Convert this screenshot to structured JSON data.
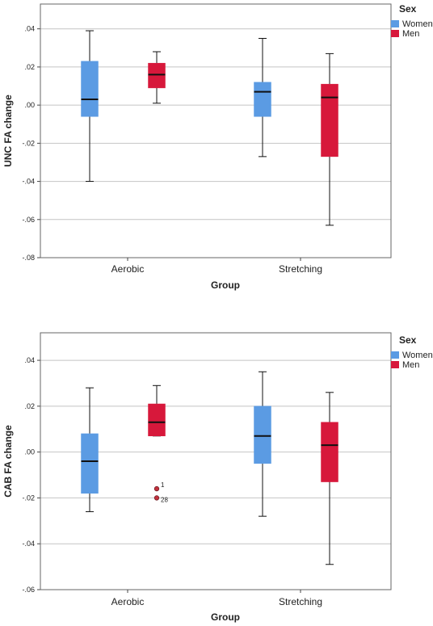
{
  "colors": {
    "Women": "#5b9be3",
    "Men": "#d7183b",
    "outlier": "#c2323e"
  },
  "chart_data": [
    {
      "type": "boxplot",
      "categories": [
        "Aerobic",
        "Stretching"
      ],
      "xlabel": "Group",
      "ylabel": "UNC FA change",
      "ylim": [
        -0.08,
        0.053
      ],
      "yticks": [
        0.04,
        0.02,
        0.0,
        -0.02,
        -0.04,
        -0.06,
        -0.08
      ],
      "ytick_labels": [
        ".04",
        ".02",
        ".00",
        "-.02",
        "-.04",
        "-.06",
        "-.08"
      ],
      "grid": true,
      "legend": {
        "title": "Sex",
        "position": "top-right"
      },
      "series": [
        {
          "name": "Women",
          "boxes": [
            {
              "min": -0.04,
              "q1": -0.006,
              "median": 0.003,
              "q3": 0.023,
              "max": 0.039,
              "outliers": []
            },
            {
              "min": -0.027,
              "q1": -0.006,
              "median": 0.007,
              "q3": 0.012,
              "max": 0.035,
              "outliers": []
            }
          ]
        },
        {
          "name": "Men",
          "boxes": [
            {
              "min": 0.001,
              "q1": 0.009,
              "median": 0.016,
              "q3": 0.022,
              "max": 0.028,
              "outliers": []
            },
            {
              "min": -0.063,
              "q1": -0.027,
              "median": 0.004,
              "q3": 0.011,
              "max": 0.027,
              "outliers": []
            }
          ]
        }
      ]
    },
    {
      "type": "boxplot",
      "categories": [
        "Aerobic",
        "Stretching"
      ],
      "xlabel": "Group",
      "ylabel": "CAB FA change",
      "ylim": [
        -0.06,
        0.052
      ],
      "yticks": [
        0.04,
        0.02,
        0.0,
        -0.02,
        -0.04,
        -0.06
      ],
      "ytick_labels": [
        ".04",
        ".02",
        ".00",
        "-.02",
        "-.04",
        "-.06"
      ],
      "grid": true,
      "legend": {
        "title": "Sex",
        "position": "top-right"
      },
      "series": [
        {
          "name": "Women",
          "boxes": [
            {
              "min": -0.026,
              "q1": -0.018,
              "median": -0.004,
              "q3": 0.008,
              "max": 0.028,
              "outliers": []
            },
            {
              "min": -0.028,
              "q1": -0.005,
              "median": 0.007,
              "q3": 0.02,
              "max": 0.035,
              "outliers": []
            }
          ]
        },
        {
          "name": "Men",
          "boxes": [
            {
              "min": 0.007,
              "q1": 0.007,
              "median": 0.013,
              "q3": 0.021,
              "max": 0.029,
              "outliers": [
                {
                  "value": -0.016,
                  "label": "1"
                },
                {
                  "value": -0.02,
                  "label": "28"
                }
              ]
            },
            {
              "min": -0.049,
              "q1": -0.013,
              "median": 0.003,
              "q3": 0.013,
              "max": 0.026,
              "outliers": []
            }
          ]
        }
      ]
    }
  ]
}
